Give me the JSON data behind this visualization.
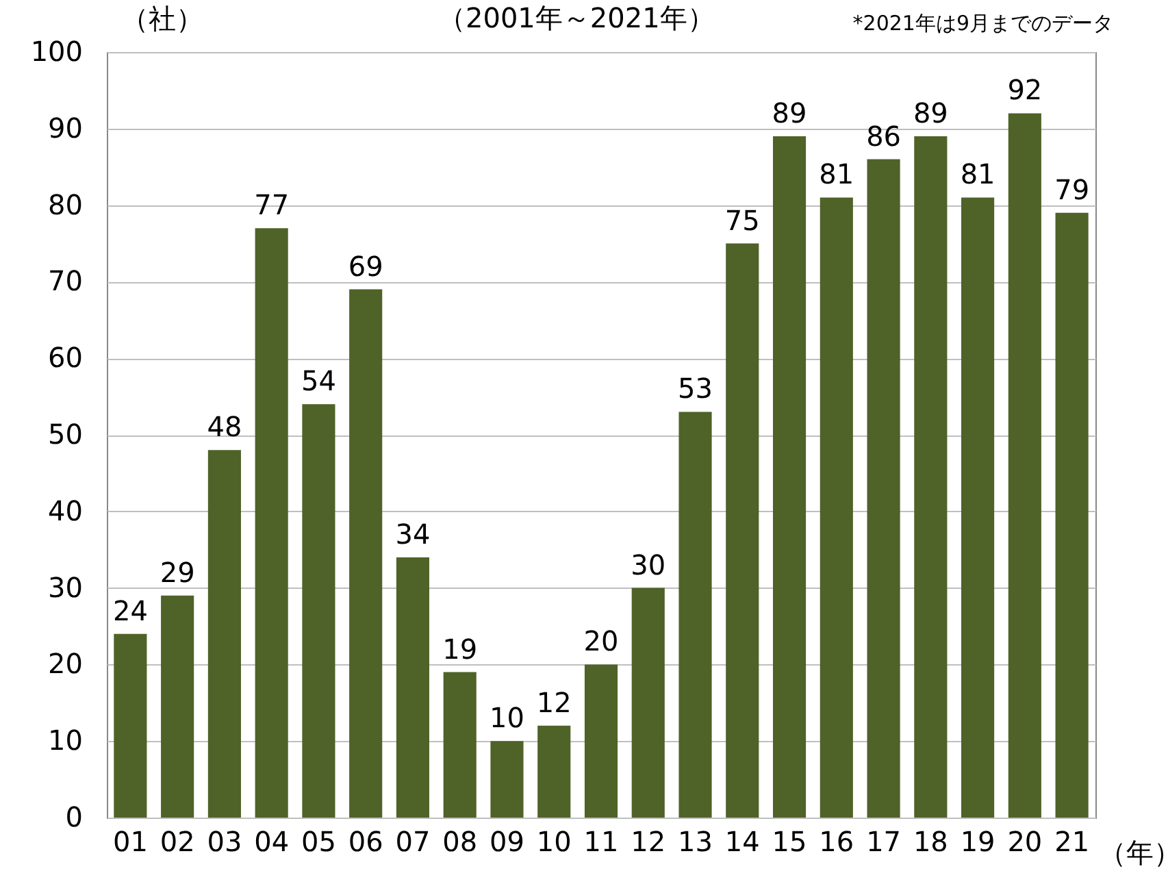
{
  "chart_data": {
    "type": "bar",
    "subtitle": "（2001年～2021年）",
    "annotations": [
      "*2021年は9月までのデータ"
    ],
    "ylabel": "（社）",
    "xlabel": "（年）",
    "categories": [
      "01",
      "02",
      "03",
      "04",
      "05",
      "06",
      "07",
      "08",
      "09",
      "10",
      "11",
      "12",
      "13",
      "14",
      "15",
      "16",
      "17",
      "18",
      "19",
      "20",
      "21"
    ],
    "values": [
      24,
      29,
      48,
      77,
      54,
      69,
      34,
      19,
      10,
      12,
      20,
      30,
      53,
      75,
      89,
      81,
      86,
      89,
      81,
      92,
      79
    ],
    "color": "#4f6228",
    "ylim": [
      0,
      100
    ],
    "yticks": [
      0,
      10,
      20,
      30,
      40,
      50,
      60,
      70,
      80,
      90,
      100
    ],
    "grid": "y",
    "data_labels": true
  }
}
